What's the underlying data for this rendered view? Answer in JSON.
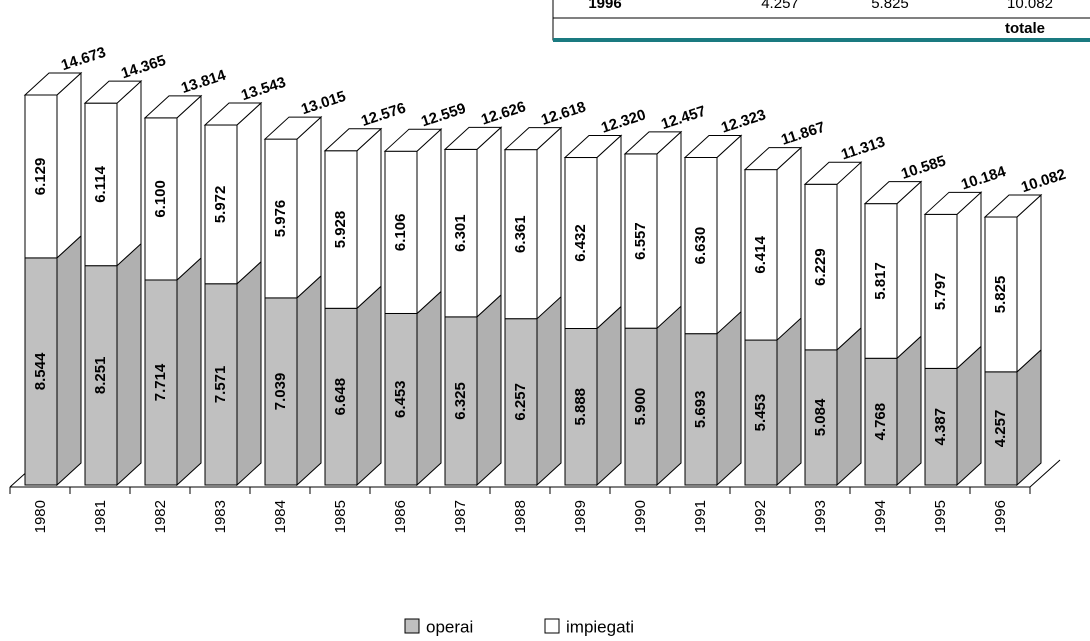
{
  "chart_data": {
    "type": "bar3d_stacked",
    "categories": [
      "1980",
      "1981",
      "1982",
      "1983",
      "1984",
      "1985",
      "1986",
      "1987",
      "1988",
      "1989",
      "1990",
      "1991",
      "1992",
      "1993",
      "1994",
      "1995",
      "1996"
    ],
    "series": [
      {
        "name": "operai",
        "color": "#c0c0c0",
        "values": [
          8.544,
          8.251,
          7.714,
          7.571,
          7.039,
          6.648,
          6.453,
          6.325,
          6.257,
          5.888,
          5.9,
          5.693,
          5.453,
          5.084,
          4.768,
          4.387,
          4.257
        ],
        "value_labels": [
          "8.544",
          "8.251",
          "7.714",
          "7.571",
          "7.039",
          "6.648",
          "6.453",
          "6.325",
          "6.257",
          "5.888",
          "5.900",
          "5.693",
          "5.453",
          "5.084",
          "4.768",
          "4.387",
          "4.257"
        ]
      },
      {
        "name": "impiegati",
        "color": "#ffffff",
        "values": [
          6.129,
          6.114,
          6.1,
          5.972,
          5.976,
          5.928,
          6.106,
          6.301,
          6.361,
          6.432,
          6.557,
          6.63,
          6.414,
          6.229,
          5.817,
          5.797,
          5.825
        ],
        "value_labels": [
          "6.129",
          "6.114",
          "6.100",
          "5.972",
          "5.976",
          "5.928",
          "6.106",
          "6.301",
          "6.361",
          "6.432",
          "6.557",
          "6.630",
          "6.414",
          "6.229",
          "5.817",
          "5.797",
          "5.825"
        ]
      }
    ],
    "totals": {
      "values": [
        14.673,
        14.365,
        13.814,
        13.543,
        13.015,
        12.576,
        12.559,
        12.626,
        12.618,
        12.32,
        12.457,
        12.323,
        11.867,
        11.313,
        10.585,
        10.184,
        10.082
      ],
      "value_labels": [
        "14.673",
        "14.365",
        "13.814",
        "13.543",
        "13.015",
        "12.576",
        "12.559",
        "12.626",
        "12.618",
        "12.320",
        "12.457",
        "12.323",
        "11.867",
        "11.313",
        "10.585",
        "10.184",
        "10.082"
      ]
    }
  },
  "table": {
    "rows": [
      [
        "1996",
        "4.257",
        "5.825",
        "10.082"
      ]
    ],
    "footer": "totale"
  }
}
